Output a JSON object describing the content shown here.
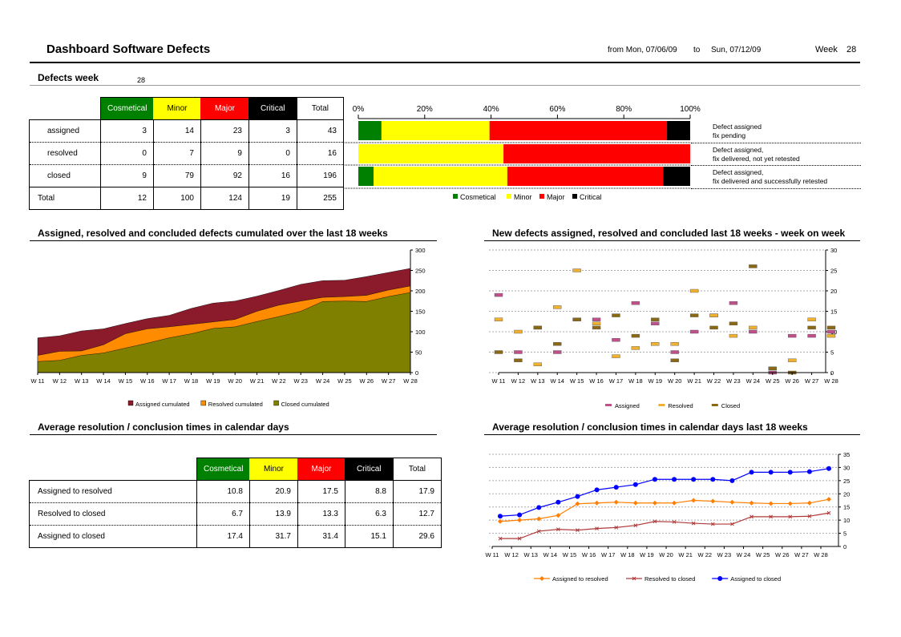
{
  "header": {
    "title": "Dashboard Software Defects",
    "from_label": "from Mon, 07/06/09",
    "to_label": "to",
    "to_date": "Sun, 07/12/09",
    "week_label": "Week",
    "week_value": "28"
  },
  "defects_week": {
    "title": "Defects week",
    "week": "28",
    "columns": [
      "Cosmetical",
      "Minor",
      "Major",
      "Critical",
      "Total"
    ],
    "rows": [
      {
        "label": "assigned",
        "values": [
          "3",
          "14",
          "23",
          "3",
          "43"
        ],
        "note1": "Defect assigned",
        "note2": "fix pending"
      },
      {
        "label": "resolved",
        "values": [
          "0",
          "7",
          "9",
          "0",
          "16"
        ],
        "note1": "Defect assigned,",
        "note2": "fix delivered, not yet retested"
      },
      {
        "label": "closed",
        "values": [
          "9",
          "79",
          "92",
          "16",
          "196"
        ],
        "note1": "Defect assigned,",
        "note2": "fix delivered and successfully retested"
      }
    ],
    "total": {
      "label": "Total",
      "values": [
        "12",
        "100",
        "124",
        "19",
        "255"
      ]
    }
  },
  "avg_table": {
    "title": "Average resolution / conclusion times in calendar days",
    "columns": [
      "Cosmetical",
      "Minor",
      "Major",
      "Critical",
      "Total"
    ],
    "rows": [
      {
        "label": "Assigned to resolved",
        "values": [
          "10.8",
          "20.9",
          "17.5",
          "8.8",
          "17.9"
        ]
      },
      {
        "label": "Resolved to closed",
        "values": [
          "6.7",
          "13.9",
          "13.3",
          "6.3",
          "12.7"
        ]
      },
      {
        "label": "Assigned to closed",
        "values": [
          "17.4",
          "31.7",
          "31.4",
          "15.1",
          "29.6"
        ]
      }
    ]
  },
  "colors": {
    "cosmetical": "#008000",
    "minor": "#ffff00",
    "major": "#ff0000",
    "critical": "#000000",
    "assigned_cum": "#8b1a2b",
    "resolved_cum": "#ff8c00",
    "closed_cum": "#808000",
    "assigned_scatter": "#c0508a",
    "resolved_scatter": "#f0b030",
    "closed_scatter": "#8b6914",
    "line_a2r": "#ff7f00",
    "line_r2c": "#b03a3a",
    "line_a2c": "#0000ff"
  },
  "chart_data": [
    {
      "type": "bar",
      "orientation": "horizontal",
      "stacked": "percent",
      "categories": [
        "assigned",
        "resolved",
        "closed"
      ],
      "x_ticks": [
        "0%",
        "20%",
        "40%",
        "60%",
        "80%",
        "100%"
      ],
      "series": [
        {
          "name": "Cosmetical",
          "values": [
            3,
            0,
            9
          ]
        },
        {
          "name": "Minor",
          "values": [
            14,
            7,
            79
          ]
        },
        {
          "name": "Major",
          "values": [
            23,
            9,
            92
          ]
        },
        {
          "name": "Critical",
          "values": [
            3,
            0,
            16
          ]
        }
      ],
      "legend": "bottom"
    },
    {
      "type": "area",
      "title": "Assigned, resolved and concluded defects cumulated over the last 18 weeks",
      "categories": [
        "W11",
        "W12",
        "W13",
        "W14",
        "W15",
        "W16",
        "W17",
        "W18",
        "W19",
        "W20",
        "W21",
        "W22",
        "W23",
        "W24",
        "W25",
        "W26",
        "W27",
        "W28"
      ],
      "y_ticks": [
        "0",
        "50",
        "100",
        "150",
        "200",
        "250",
        "300"
      ],
      "ylim": [
        0,
        300
      ],
      "series": [
        {
          "name": "Assigned cumulated",
          "values": [
            85,
            90,
            102,
            107,
            120,
            132,
            140,
            157,
            170,
            175,
            187,
            201,
            216,
            225,
            226,
            235,
            245,
            255
          ]
        },
        {
          "name": "Resolved cumulated",
          "values": [
            42,
            52,
            53,
            68,
            95,
            107,
            112,
            118,
            124,
            130,
            150,
            165,
            175,
            184,
            186,
            189,
            202,
            212
          ]
        },
        {
          "name": "Closed cumulated",
          "values": [
            27,
            30,
            42,
            48,
            60,
            72,
            85,
            95,
            108,
            112,
            125,
            137,
            150,
            174,
            175,
            174,
            186,
            196
          ]
        }
      ],
      "legend": "bottom"
    },
    {
      "type": "scatter",
      "title": "New defects assigned, resolved and concluded last 18 weeks - week on week",
      "categories": [
        "W11",
        "W12",
        "W13",
        "W14",
        "W15",
        "W16",
        "W17",
        "W18",
        "W19",
        "W20",
        "W21",
        "W22",
        "W23",
        "W24",
        "W25",
        "W26",
        "W27",
        "W28"
      ],
      "y_ticks": [
        "0",
        "5",
        "10",
        "15",
        "20",
        "25",
        "30"
      ],
      "ylim": [
        0,
        30
      ],
      "series": [
        {
          "name": "Assigned",
          "values": [
            19,
            5,
            11,
            5,
            13,
            13,
            8,
            17,
            12,
            5,
            10,
            14,
            17,
            10,
            0,
            9,
            9,
            10
          ]
        },
        {
          "name": "Resolved",
          "values": [
            13,
            10,
            2,
            16,
            25,
            12,
            4,
            6,
            7,
            7,
            20,
            14,
            9,
            11,
            1,
            3,
            13,
            9
          ]
        },
        {
          "name": "Closed",
          "values": [
            5,
            3,
            11,
            7,
            13,
            11,
            14,
            9,
            13,
            3,
            14,
            11,
            12,
            26,
            1,
            0,
            11,
            11
          ]
        }
      ],
      "legend": "bottom"
    },
    {
      "type": "line",
      "title": "Average resolution / conclusion times in calendar days last 18 weeks",
      "categories": [
        "W11",
        "W12",
        "W13",
        "W14",
        "W15",
        "W16",
        "W17",
        "W18",
        "W19",
        "W20",
        "W21",
        "W22",
        "W23",
        "W24",
        "W25",
        "W26",
        "W27",
        "W28"
      ],
      "y_ticks": [
        "0",
        "5",
        "10",
        "15",
        "20",
        "25",
        "30",
        "35"
      ],
      "ylim": [
        0,
        35
      ],
      "series": [
        {
          "name": "Assigned to resolved",
          "values": [
            9.5,
            10,
            10.5,
            11.8,
            16.2,
            16.5,
            16.8,
            16.5,
            16.5,
            16.5,
            17.5,
            17.2,
            16.8,
            16.5,
            16.3,
            16.3,
            16.5,
            17.9
          ]
        },
        {
          "name": "Resolved to closed",
          "values": [
            3,
            3,
            5.8,
            6.5,
            6.2,
            6.8,
            7.2,
            8,
            9.5,
            9.3,
            8.8,
            8.5,
            8.5,
            11.3,
            11.3,
            11.3,
            11.5,
            12.7
          ]
        },
        {
          "name": "Assigned to closed",
          "values": [
            11.5,
            12,
            14.8,
            16.8,
            19,
            21.5,
            22.5,
            23.5,
            25.5,
            25.5,
            25.5,
            25.5,
            25,
            28.2,
            28.2,
            28.2,
            28.4,
            29.6
          ]
        }
      ],
      "legend": "bottom"
    }
  ]
}
